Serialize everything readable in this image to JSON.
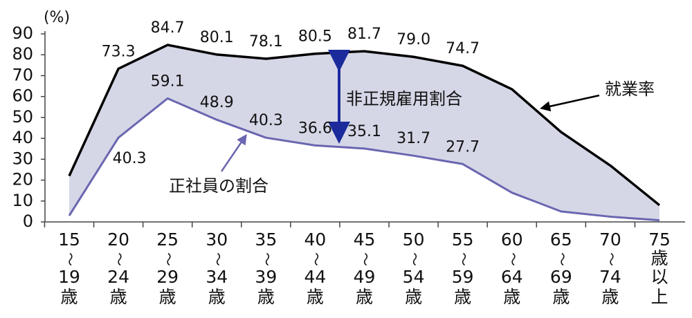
{
  "chart_data": {
    "type": "line",
    "y_unit": "(%)",
    "categories": [
      [
        "15",
        "〜",
        "19",
        "歳"
      ],
      [
        "20",
        "〜",
        "24",
        "歳"
      ],
      [
        "25",
        "〜",
        "29",
        "歳"
      ],
      [
        "30",
        "〜",
        "34",
        "歳"
      ],
      [
        "35",
        "〜",
        "39",
        "歳"
      ],
      [
        "40",
        "〜",
        "44",
        "歳"
      ],
      [
        "45",
        "〜",
        "49",
        "歳"
      ],
      [
        "50",
        "〜",
        "54",
        "歳"
      ],
      [
        "55",
        "〜",
        "59",
        "歳"
      ],
      [
        "60",
        "〜",
        "64",
        "歳"
      ],
      [
        "65",
        "〜",
        "69",
        "歳"
      ],
      [
        "70",
        "〜",
        "74",
        "歳"
      ],
      [
        "75",
        "歳",
        "以",
        "上"
      ]
    ],
    "series": [
      {
        "name": "就業率",
        "color": "#000000",
        "values": [
          22,
          73.3,
          84.7,
          80.1,
          78.1,
          80.5,
          81.7,
          79.0,
          74.7,
          63.5,
          43,
          27,
          8
        ],
        "value_labels": [
          null,
          "73.3",
          "84.7",
          "80.1",
          "78.1",
          "80.5",
          "81.7",
          "79.0",
          "74.7",
          null,
          null,
          null,
          null
        ]
      },
      {
        "name": "正社員の割合",
        "color": "#6a66b0",
        "values": [
          3,
          40.3,
          59.1,
          48.9,
          40.3,
          36.6,
          35.1,
          31.7,
          27.7,
          14,
          5,
          2.5,
          0.8
        ],
        "value_labels": [
          null,
          "40.3",
          "59.1",
          "48.9",
          "40.3",
          "36.6",
          "35.1",
          "31.7",
          "27.7",
          null,
          null,
          null,
          null
        ]
      }
    ],
    "fill_between_color": "#d5d7e7",
    "annotation": "非正規雇用割合",
    "annotation_color": "#1c2b9c",
    "ylim": [
      0,
      90
    ],
    "yticks": [
      0,
      10,
      20,
      30,
      40,
      50,
      60,
      70,
      80,
      90
    ]
  }
}
